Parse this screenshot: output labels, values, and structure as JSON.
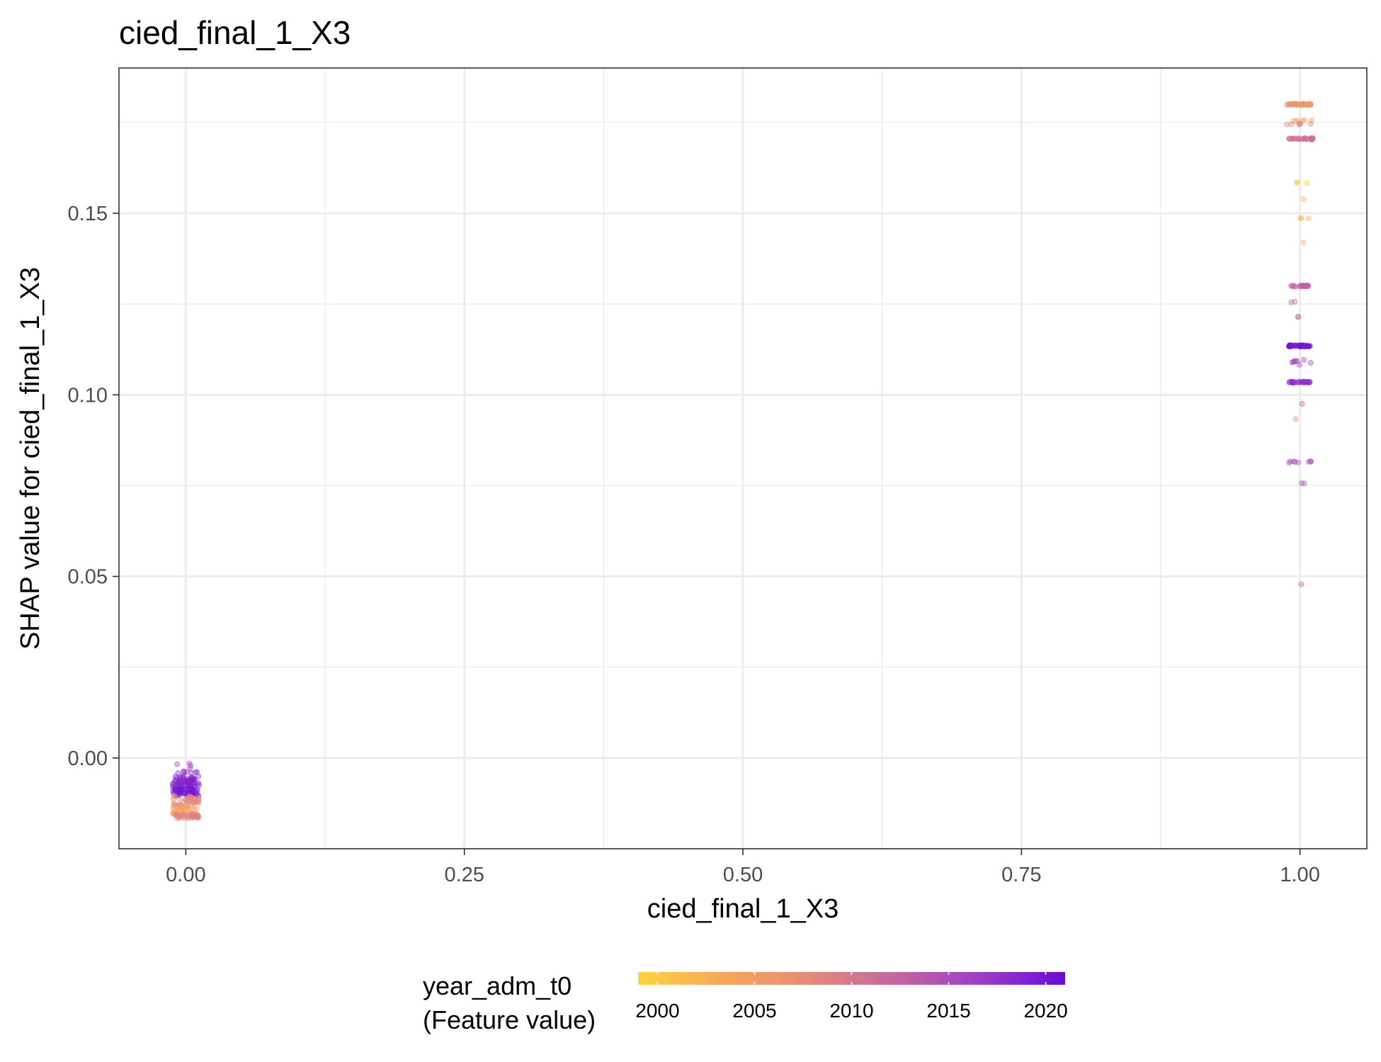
{
  "chart_data": {
    "type": "scatter",
    "title": "cied_final_1_X3",
    "xlabel": "cied_final_1_X3",
    "ylabel": "SHAP value for cied_final_1_X3",
    "xlim": [
      -0.06,
      1.06
    ],
    "ylim": [
      -0.025,
      0.19
    ],
    "x_ticks": [
      {
        "value": 0,
        "label": "0.00"
      },
      {
        "value": 0.25,
        "label": "0.25"
      },
      {
        "value": 0.5,
        "label": "0.50"
      },
      {
        "value": 0.75,
        "label": "0.75"
      },
      {
        "value": 1,
        "label": "1.00"
      }
    ],
    "x_minor_ticks": [
      0.125,
      0.375,
      0.625,
      0.875
    ],
    "y_ticks": [
      {
        "value": 0,
        "label": "0.00"
      },
      {
        "value": 0.05,
        "label": "0.05"
      },
      {
        "value": 0.1,
        "label": "0.10"
      },
      {
        "value": 0.15,
        "label": "0.15"
      }
    ],
    "y_minor_ticks": [
      -0.025,
      0.025,
      0.075,
      0.125,
      0.175
    ],
    "grid": true,
    "color_scale": {
      "title_lines": [
        "year_adm_t0",
        "(Feature value)"
      ],
      "min": 1999,
      "max": 2021,
      "ticks": [
        {
          "value": 2000,
          "label": "2000"
        },
        {
          "value": 2005,
          "label": "2005"
        },
        {
          "value": 2010,
          "label": "2010"
        },
        {
          "value": 2015,
          "label": "2015"
        },
        {
          "value": 2020,
          "label": "2020"
        }
      ],
      "colors": [
        "#FFD23F",
        "#F5A85A",
        "#E38B7A",
        "#C566A0",
        "#9A3FC6",
        "#6A0AD8"
      ]
    },
    "point_groups": [
      {
        "x": 0,
        "x_spread": 0.012,
        "y": -0.0025,
        "y_spread": 0.001,
        "year": 2016,
        "count": 4
      },
      {
        "x": 0,
        "x_spread": 0.012,
        "y": -0.005,
        "y_spread": 0.0015,
        "year": 2018,
        "count": 30
      },
      {
        "x": 0,
        "x_spread": 0.012,
        "y": -0.0075,
        "y_spread": 0.0015,
        "year": 2019,
        "count": 50
      },
      {
        "x": 0,
        "x_spread": 0.012,
        "y": -0.0095,
        "y_spread": 0.001,
        "year": 2020,
        "count": 50
      },
      {
        "x": 0,
        "x_spread": 0.012,
        "y": -0.012,
        "y_spread": 0.0015,
        "year": 2008,
        "count": 40
      },
      {
        "x": 0,
        "x_spread": 0.012,
        "y": -0.0145,
        "y_spread": 0.0012,
        "year": 2004,
        "count": 40
      },
      {
        "x": 0,
        "x_spread": 0.012,
        "y": -0.016,
        "y_spread": 0.0006,
        "year": 2009,
        "count": 30
      },
      {
        "x": 1,
        "x_spread": 0.012,
        "y": 0.18,
        "y_spread": 0.0002,
        "year": 2006,
        "count": 40
      },
      {
        "x": 1,
        "x_spread": 0.012,
        "y": 0.1755,
        "y_spread": 0.0002,
        "year": 2004,
        "count": 6
      },
      {
        "x": 1,
        "x_spread": 0.012,
        "y": 0.1745,
        "y_spread": 0.0002,
        "year": 2009,
        "count": 6
      },
      {
        "x": 1,
        "x_spread": 0.012,
        "y": 0.1705,
        "y_spread": 0.0002,
        "year": 2011,
        "count": 30
      },
      {
        "x": 1,
        "x_spread": 0.009,
        "y": 0.1585,
        "y_spread": 0.0002,
        "year": 2000,
        "count": 3
      },
      {
        "x": 1,
        "x_spread": 0.004,
        "y": 0.154,
        "y_spread": 0.0002,
        "year": 2001,
        "count": 1
      },
      {
        "x": 1,
        "x_spread": 0.01,
        "y": 0.1485,
        "y_spread": 0.0002,
        "year": 2002,
        "count": 3
      },
      {
        "x": 1,
        "x_spread": 0.004,
        "y": 0.142,
        "y_spread": 0.0002,
        "year": 2003,
        "count": 1
      },
      {
        "x": 1,
        "x_spread": 0.008,
        "y": 0.13,
        "y_spread": 0.0002,
        "year": 2013,
        "count": 20
      },
      {
        "x": 1,
        "x_spread": 0.01,
        "y": 0.1255,
        "y_spread": 0.0002,
        "year": 2012,
        "count": 2
      },
      {
        "x": 1,
        "x_spread": 0.008,
        "y": 0.1215,
        "y_spread": 0.0002,
        "year": 2011,
        "count": 2
      },
      {
        "x": 1,
        "x_spread": 0.01,
        "y": 0.1135,
        "y_spread": 0.0002,
        "year": 2020,
        "count": 50
      },
      {
        "x": 1,
        "x_spread": 0.01,
        "y": 0.109,
        "y_spread": 0.0008,
        "year": 2016,
        "count": 8
      },
      {
        "x": 1,
        "x_spread": 0.01,
        "y": 0.1035,
        "y_spread": 0.0002,
        "year": 2018,
        "count": 25
      },
      {
        "x": 1,
        "x_spread": 0.006,
        "y": 0.0975,
        "y_spread": 0.0002,
        "year": 2013,
        "count": 1
      },
      {
        "x": 1,
        "x_spread": 0.006,
        "y": 0.0935,
        "y_spread": 0.0002,
        "year": 2006,
        "count": 1
      },
      {
        "x": 1,
        "x_spread": 0.01,
        "y": 0.0815,
        "y_spread": 0.0002,
        "year": 2015,
        "count": 8
      },
      {
        "x": 1,
        "x_spread": 0.008,
        "y": 0.0755,
        "y_spread": 0.0002,
        "year": 2014,
        "count": 2
      },
      {
        "x": 1,
        "x_spread": 0.002,
        "y": 0.048,
        "y_spread": 0.0002,
        "year": 2013,
        "count": 1
      }
    ]
  }
}
